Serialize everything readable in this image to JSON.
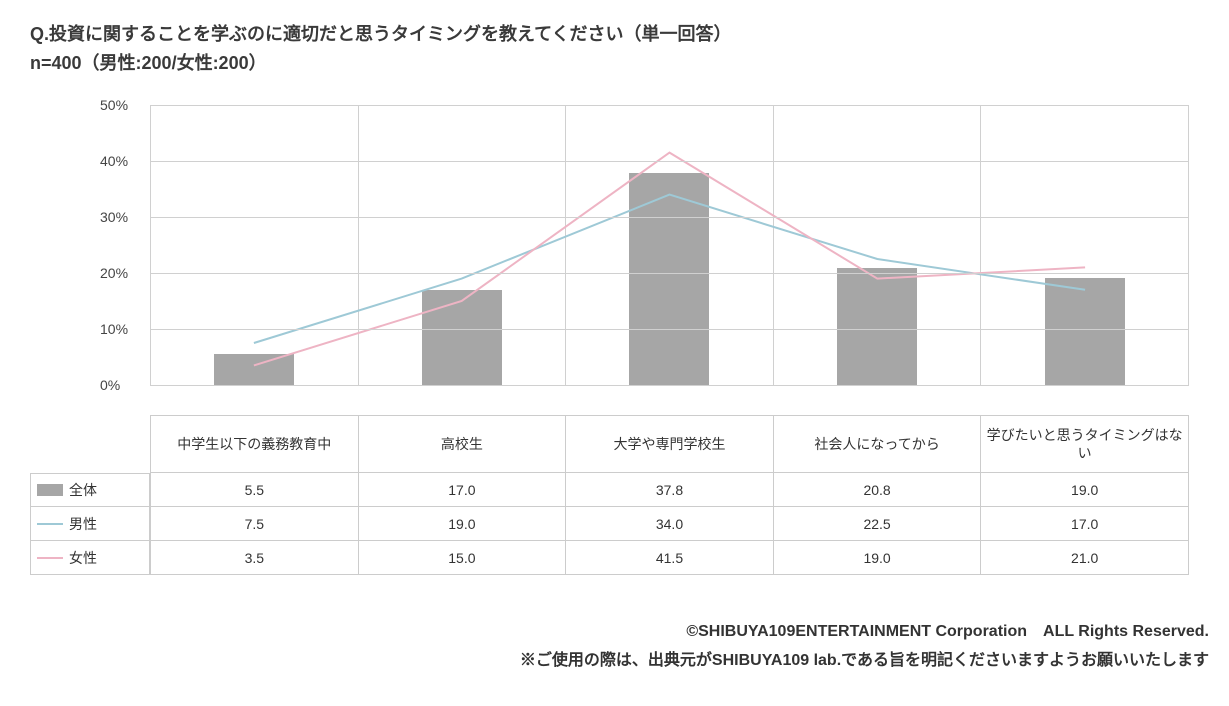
{
  "title": "Q.投資に関することを学ぶのに適切だと思うタイミングを教えてください（単一回答）",
  "subtitle": "n=400（男性:200/女性:200）",
  "chart": {
    "type": "bar_with_lines",
    "ylim": [
      0,
      50
    ],
    "ytick_step": 10,
    "ytick_suffix": "%",
    "categories": [
      "中学生以下の義務教育中",
      "高校生",
      "大学や専門学校生",
      "社会人になってから",
      "学びたいと思うタイミングはない"
    ],
    "bar_color": "#a6a6a6",
    "grid_color": "#d0d0d0",
    "background_color": "#ffffff",
    "series": [
      {
        "key": "total",
        "label": "全体",
        "type": "bar",
        "color": "#a6a6a6",
        "values": [
          5.5,
          17.0,
          37.8,
          20.8,
          19.0
        ]
      },
      {
        "key": "male",
        "label": "男性",
        "type": "line",
        "color": "#9ec9d6",
        "values": [
          7.5,
          19.0,
          34.0,
          22.5,
          17.0
        ]
      },
      {
        "key": "female",
        "label": "女性",
        "type": "line",
        "color": "#eeb4c4",
        "values": [
          3.5,
          15.0,
          41.5,
          19.0,
          21.0
        ]
      }
    ],
    "line_width": 2,
    "title_fontsize": 18,
    "label_fontsize": 14
  },
  "footer": {
    "line1": "©SHIBUYA109ENTERTAINMENT Corporation　ALL Rights Reserved.",
    "line2": "※ご使用の際は、出典元がSHIBUYA109 lab.である旨を明記くださいますようお願いいたします"
  }
}
